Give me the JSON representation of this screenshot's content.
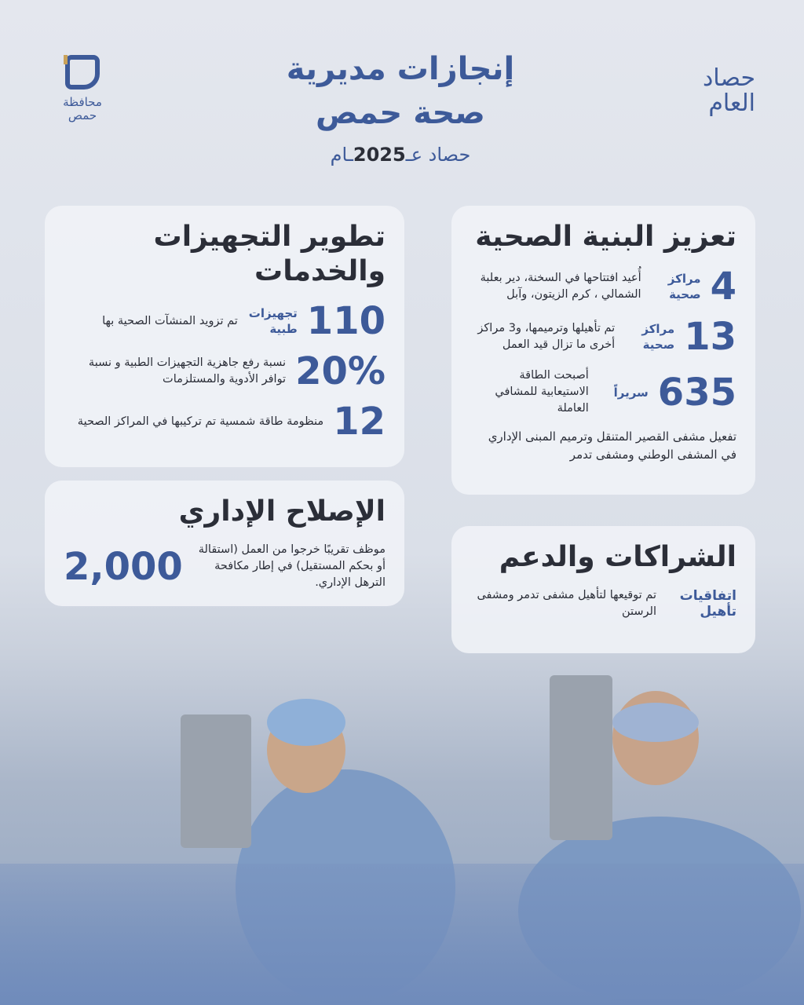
{
  "header": {
    "title_line1": "إنجازات مديرية",
    "title_line2": "صحة حمص",
    "subtitle_prefix": "حصاد عـ",
    "year": "2025",
    "subtitle_suffix": "ـام",
    "corner_line1": "حصاد",
    "corner_line2": "العام",
    "logo_line1": "محافظة",
    "logo_line2": "حمص"
  },
  "accent_color": "#3d5a99",
  "sections": {
    "infrastructure": {
      "title": "تعزيز البنية الصحية",
      "items": [
        {
          "number": "4",
          "label": "مراكز صحية",
          "desc": "أُعيد افتتاحها في السخنة، دير بعلبة الشمالي ، كرم الزيتون، وآبل"
        },
        {
          "number": "13",
          "label": "مراكز صحية",
          "desc": "تم تأهيلها وترميمها، و3 مراكز أخرى ما تزال قيد العمل"
        },
        {
          "number": "635",
          "label": "سريراً",
          "desc": "أصبحت الطاقة الاستيعابية للمشافي العاملة"
        }
      ],
      "note": "تفعيل مشفى القصير المتنقل وترميم المبنى الإداري في المشفى الوطني ومشفى تدمر"
    },
    "equipment": {
      "title": "تطوير التجهيزات والخدمات",
      "items": [
        {
          "number": "110",
          "label": "تجهيزات طبية",
          "desc": "تم تزويد المنشآت الصحية بها"
        },
        {
          "number": "20%",
          "label": "",
          "desc": "نسبة رفع جاهزية التجهيزات الطبية و نسبة توافر الأدوية والمستلزمات"
        },
        {
          "number": "12",
          "label": "",
          "desc": "منظومة طاقة شمسية تم تركيبها في المراكز الصحية"
        }
      ]
    },
    "admin": {
      "title": "الإصلاح الإداري",
      "number": "2,000",
      "desc": "موظف تقريبًا خرجوا من العمل (استقالة أو بحكم المستقيل) في إطار مكافحة الترهل الإداري."
    },
    "partnerships": {
      "title": "الشراكات والدعم",
      "label": "اتفاقيات تأهيل",
      "desc": "تم توقيعها لتأهيل مشفى تدمر ومشفى الرستن"
    }
  }
}
